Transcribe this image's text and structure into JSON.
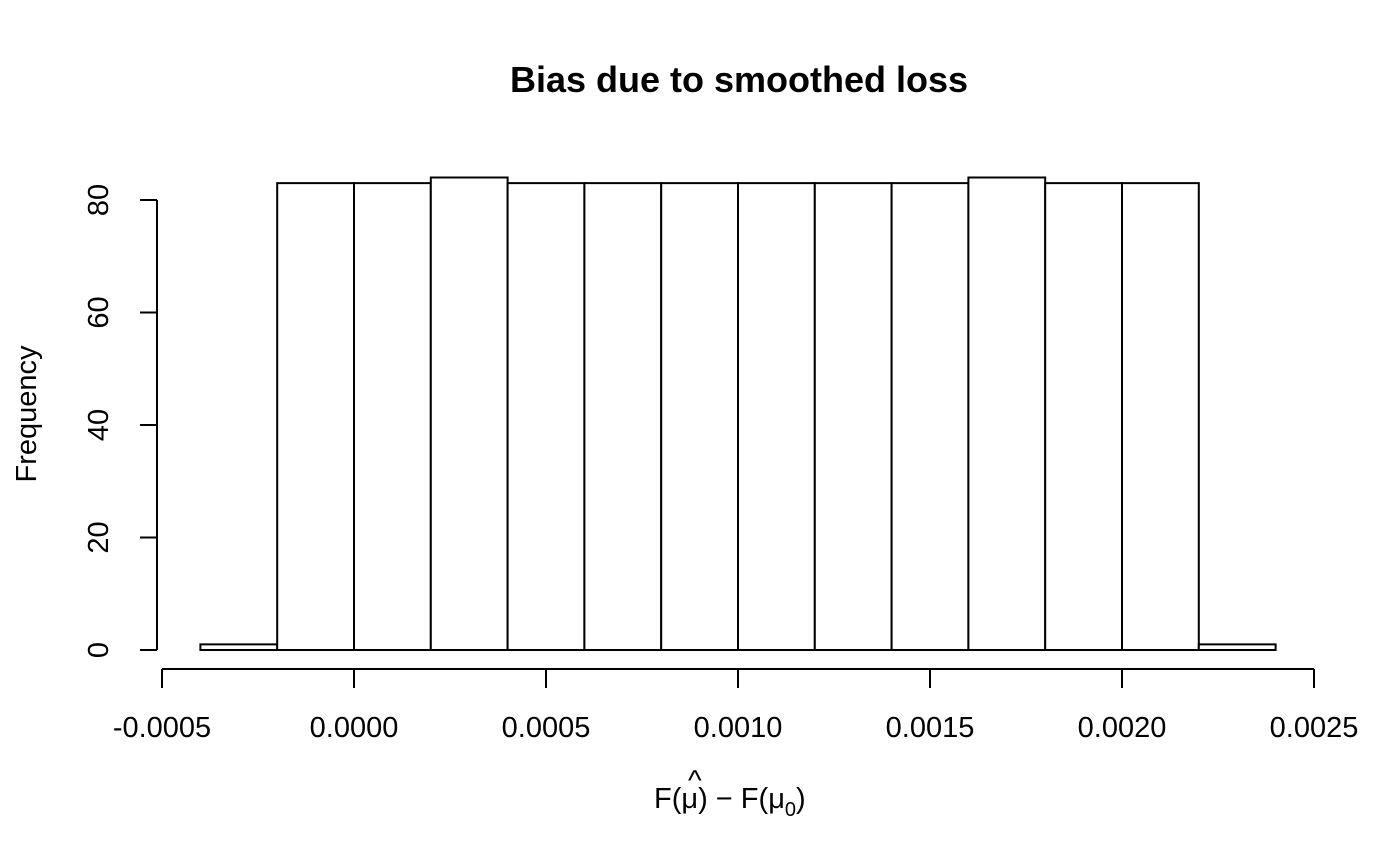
{
  "chart_data": {
    "type": "bar",
    "title": "Bias due to smoothed loss",
    "xlabel": "F(μ̂) − F(μ₀)",
    "xlabel_parts": {
      "f1": "F(",
      "mu": "μ",
      "hat": "^",
      "mid": ") − F(",
      "mu0": "μ",
      "sub0": "0",
      "end": ")"
    },
    "ylabel": "Frequency",
    "xlim": [
      -0.0005,
      0.0025
    ],
    "ylim": [
      0,
      84
    ],
    "x_ticks": [
      -0.0005,
      0.0,
      0.0005,
      0.001,
      0.0015,
      0.002,
      0.0025
    ],
    "x_tick_labels": [
      "-0.0005",
      "0.0000",
      "0.0005",
      "0.0010",
      "0.0015",
      "0.0020",
      "0.0025"
    ],
    "y_ticks": [
      0,
      20,
      40,
      60,
      80
    ],
    "y_tick_labels": [
      "0",
      "20",
      "40",
      "60",
      "80"
    ],
    "bins": [
      {
        "x0": -0.0004,
        "x1": -0.0002,
        "count": 1
      },
      {
        "x0": -0.0002,
        "x1": 0.0,
        "count": 83
      },
      {
        "x0": 0.0,
        "x1": 0.0002,
        "count": 83
      },
      {
        "x0": 0.0002,
        "x1": 0.0004,
        "count": 84
      },
      {
        "x0": 0.0004,
        "x1": 0.0006,
        "count": 83
      },
      {
        "x0": 0.0006,
        "x1": 0.0008,
        "count": 83
      },
      {
        "x0": 0.0008,
        "x1": 0.001,
        "count": 83
      },
      {
        "x0": 0.001,
        "x1": 0.0012,
        "count": 83
      },
      {
        "x0": 0.0012,
        "x1": 0.0014,
        "count": 83
      },
      {
        "x0": 0.0014,
        "x1": 0.0016,
        "count": 83
      },
      {
        "x0": 0.0016,
        "x1": 0.0018,
        "count": 84
      },
      {
        "x0": 0.0018,
        "x1": 0.002,
        "count": 83
      },
      {
        "x0": 0.002,
        "x1": 0.0022,
        "count": 83
      },
      {
        "x0": 0.0022,
        "x1": 0.0024,
        "count": 1
      }
    ],
    "colors": {
      "bar_fill": "#ffffff",
      "bar_stroke": "#000000"
    }
  }
}
